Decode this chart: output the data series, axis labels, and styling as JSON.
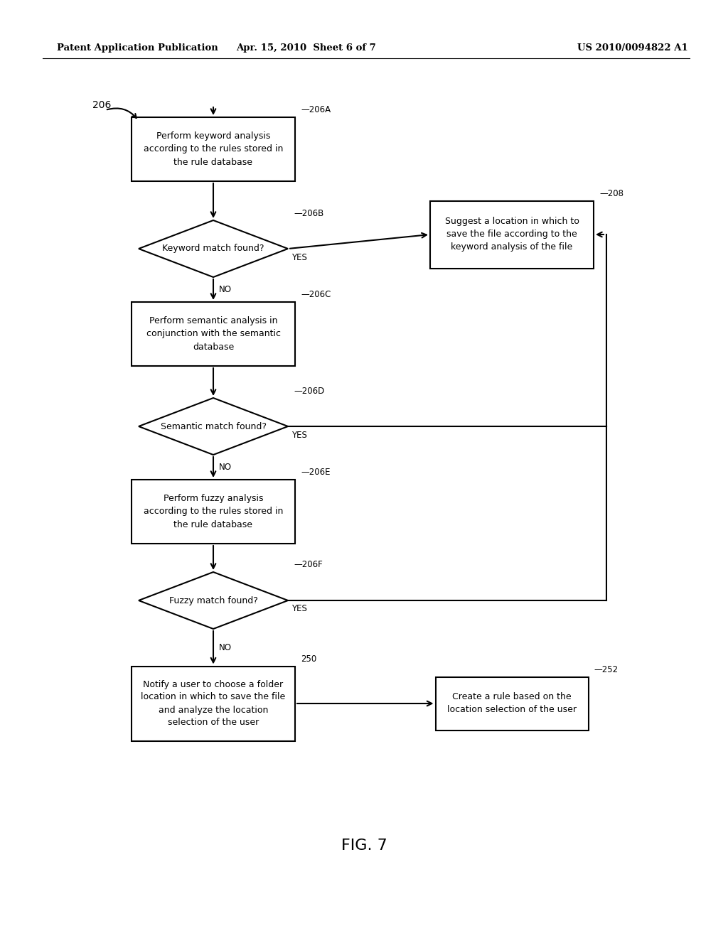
{
  "bg_color": "#ffffff",
  "text_color": "#000000",
  "header_left": "Patent Application Publication",
  "header_mid": "Apr. 15, 2010  Sheet 6 of 7",
  "header_right": "US 2010/0094822 A1",
  "figure_label": "FIG. 7",
  "lw": 1.5
}
